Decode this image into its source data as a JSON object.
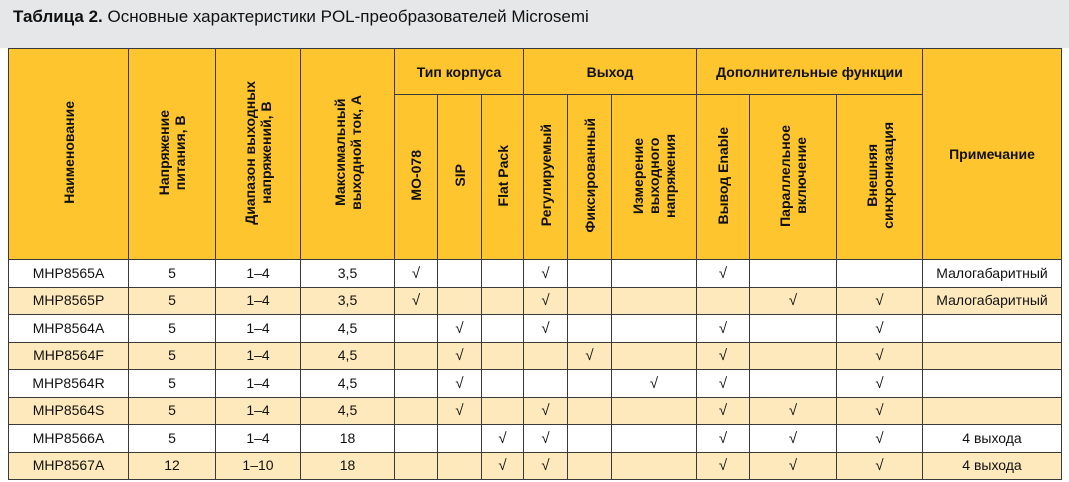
{
  "title": {
    "bold": "Таблица 2.",
    "text": " Основные характеристики POL-преобразователей Microsemi"
  },
  "headers": {
    "name": "Наименование",
    "voltage": "Напряжение\nпитания, В",
    "range": "Диапазон выходных\nнапряжений, В",
    "current": "Максимальный\nвыходной ток, А",
    "group_package": "Тип корпуса",
    "group_output": "Выход",
    "group_extra": "Дополнительные функции",
    "note": "Примечание",
    "mo078": "МО-078",
    "sip": "SIP",
    "flatpack": "Flat Pack",
    "regulated": "Регулируемый",
    "fixed": "Фиксированный",
    "sense": "Измерение\nвыходного\nнапряжения",
    "enable": "Вывод Enable",
    "parallel": "Параллельное\nвключение",
    "sync": "Внешняя\nсинхронизация"
  },
  "check": "√",
  "rows": [
    {
      "name": "MHP8565A",
      "voltage": "5",
      "range": "1–4",
      "current": "3,5",
      "mo078": "√",
      "sip": "",
      "flatpack": "",
      "regulated": "√",
      "fixed": "",
      "sense": "",
      "enable": "√",
      "parallel": "",
      "sync": "",
      "note": "Малогабаритный"
    },
    {
      "name": "MHP8565P",
      "voltage": "5",
      "range": "1–4",
      "current": "3,5",
      "mo078": "√",
      "sip": "",
      "flatpack": "",
      "regulated": "√",
      "fixed": "",
      "sense": "",
      "enable": "",
      "parallel": "√",
      "sync": "√",
      "note": "Малогабаритный"
    },
    {
      "name": "MHP8564A",
      "voltage": "5",
      "range": "1–4",
      "current": "4,5",
      "mo078": "",
      "sip": "√",
      "flatpack": "",
      "regulated": "√",
      "fixed": "",
      "sense": "",
      "enable": "√",
      "parallel": "",
      "sync": "√",
      "note": ""
    },
    {
      "name": "MHP8564F",
      "voltage": "5",
      "range": "1–4",
      "current": "4,5",
      "mo078": "",
      "sip": "√",
      "flatpack": "",
      "regulated": "",
      "fixed": "√",
      "sense": "",
      "enable": "√",
      "parallel": "",
      "sync": "√",
      "note": ""
    },
    {
      "name": "MHP8564R",
      "voltage": "5",
      "range": "1–4",
      "current": "4,5",
      "mo078": "",
      "sip": "√",
      "flatpack": "",
      "regulated": "",
      "fixed": "",
      "sense": "√",
      "enable": "√",
      "parallel": "",
      "sync": "√",
      "note": ""
    },
    {
      "name": "MHP8564S",
      "voltage": "5",
      "range": "1–4",
      "current": "4,5",
      "mo078": "",
      "sip": "√",
      "flatpack": "",
      "regulated": "√",
      "fixed": "",
      "sense": "",
      "enable": "√",
      "parallel": "√",
      "sync": "√",
      "note": ""
    },
    {
      "name": "MHP8566A",
      "voltage": "5",
      "range": "1–4",
      "current": "18",
      "mo078": "",
      "sip": "",
      "flatpack": "√",
      "regulated": "√",
      "fixed": "",
      "sense": "",
      "enable": "√",
      "parallel": "√",
      "sync": "√",
      "note": "4 выхода"
    },
    {
      "name": "MHP8567A",
      "voltage": "12",
      "range": "1–10",
      "current": "18",
      "mo078": "",
      "sip": "",
      "flatpack": "√",
      "regulated": "√",
      "fixed": "",
      "sense": "",
      "enable": "√",
      "parallel": "√",
      "sync": "√",
      "note": "4 выхода"
    }
  ]
}
